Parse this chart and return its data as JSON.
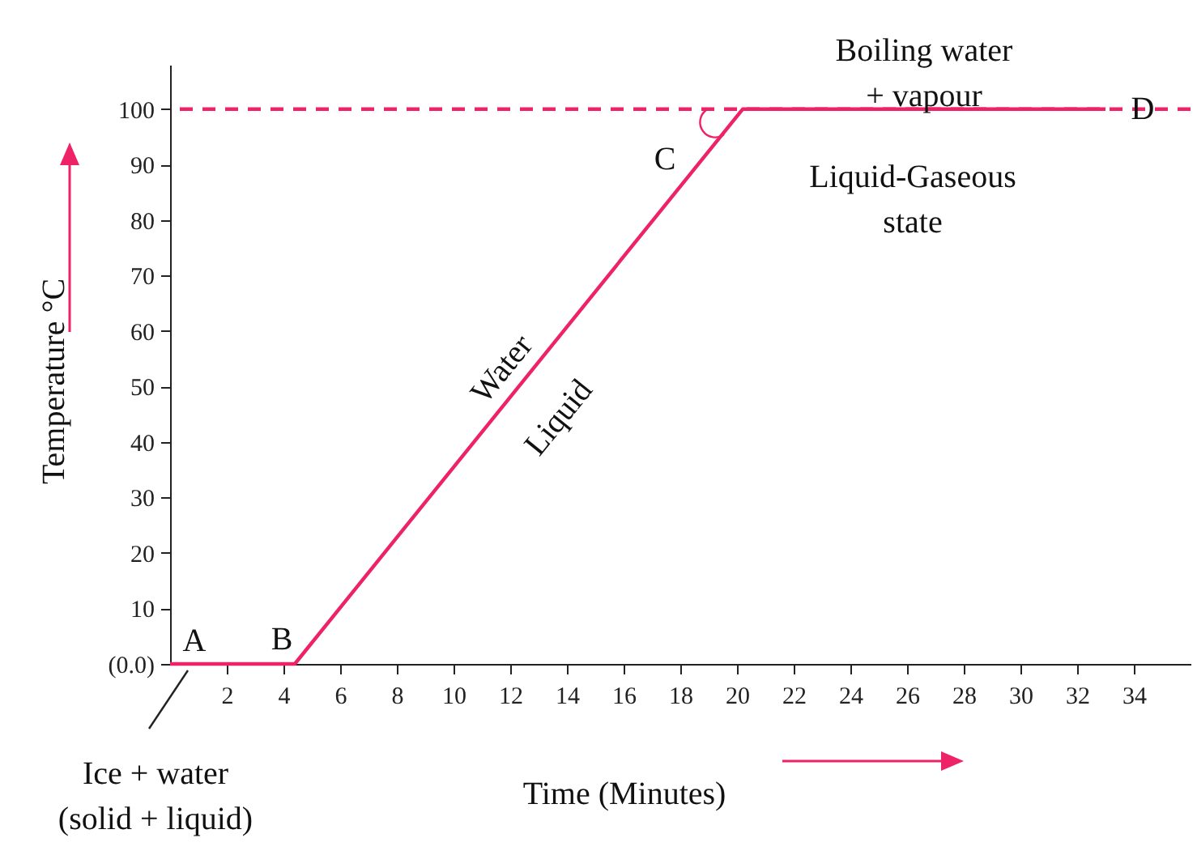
{
  "chart_data": {
    "type": "line",
    "xlabel": "Time  (Minutes)",
    "ylabel": "Temperature °C",
    "x": [
      0,
      4.4,
      20.2,
      33
    ],
    "series": [
      {
        "color": "#ee2266",
        "values": [
          0,
          0,
          100,
          100
        ]
      }
    ],
    "xlim": [
      0,
      36
    ],
    "ylim": [
      0,
      108
    ],
    "xticks": [
      2,
      4,
      6,
      8,
      10,
      12,
      14,
      16,
      18,
      20,
      22,
      24,
      26,
      28,
      30,
      32,
      34
    ],
    "yticks": [
      {
        "value": 0,
        "label": "(0.0)"
      },
      10,
      20,
      30,
      40,
      50,
      60,
      70,
      80,
      90,
      100
    ],
    "ref_lines": [
      {
        "axis": "y",
        "value": 100,
        "color": "#ee2266",
        "line_style": "dashed"
      }
    ],
    "grid": false,
    "marker": "none",
    "line_style": "solid",
    "annotations": [
      {
        "text": "A",
        "x": 0,
        "y": 0
      },
      {
        "text": "B",
        "x": 4.4,
        "y": 0
      },
      {
        "text": "C",
        "x": 20.2,
        "y": 100
      },
      {
        "text": "D",
        "x": 33,
        "y": 100
      },
      "Water",
      "Liquid",
      {
        "text": "Boiling water\n+ vapour",
        "x": 26.6,
        "y": 100
      },
      {
        "text": "Liquid-Gaseous\nstate",
        "x": 26.2,
        "y": 100
      },
      "Ice + water\n(solid + liquid)"
    ]
  }
}
